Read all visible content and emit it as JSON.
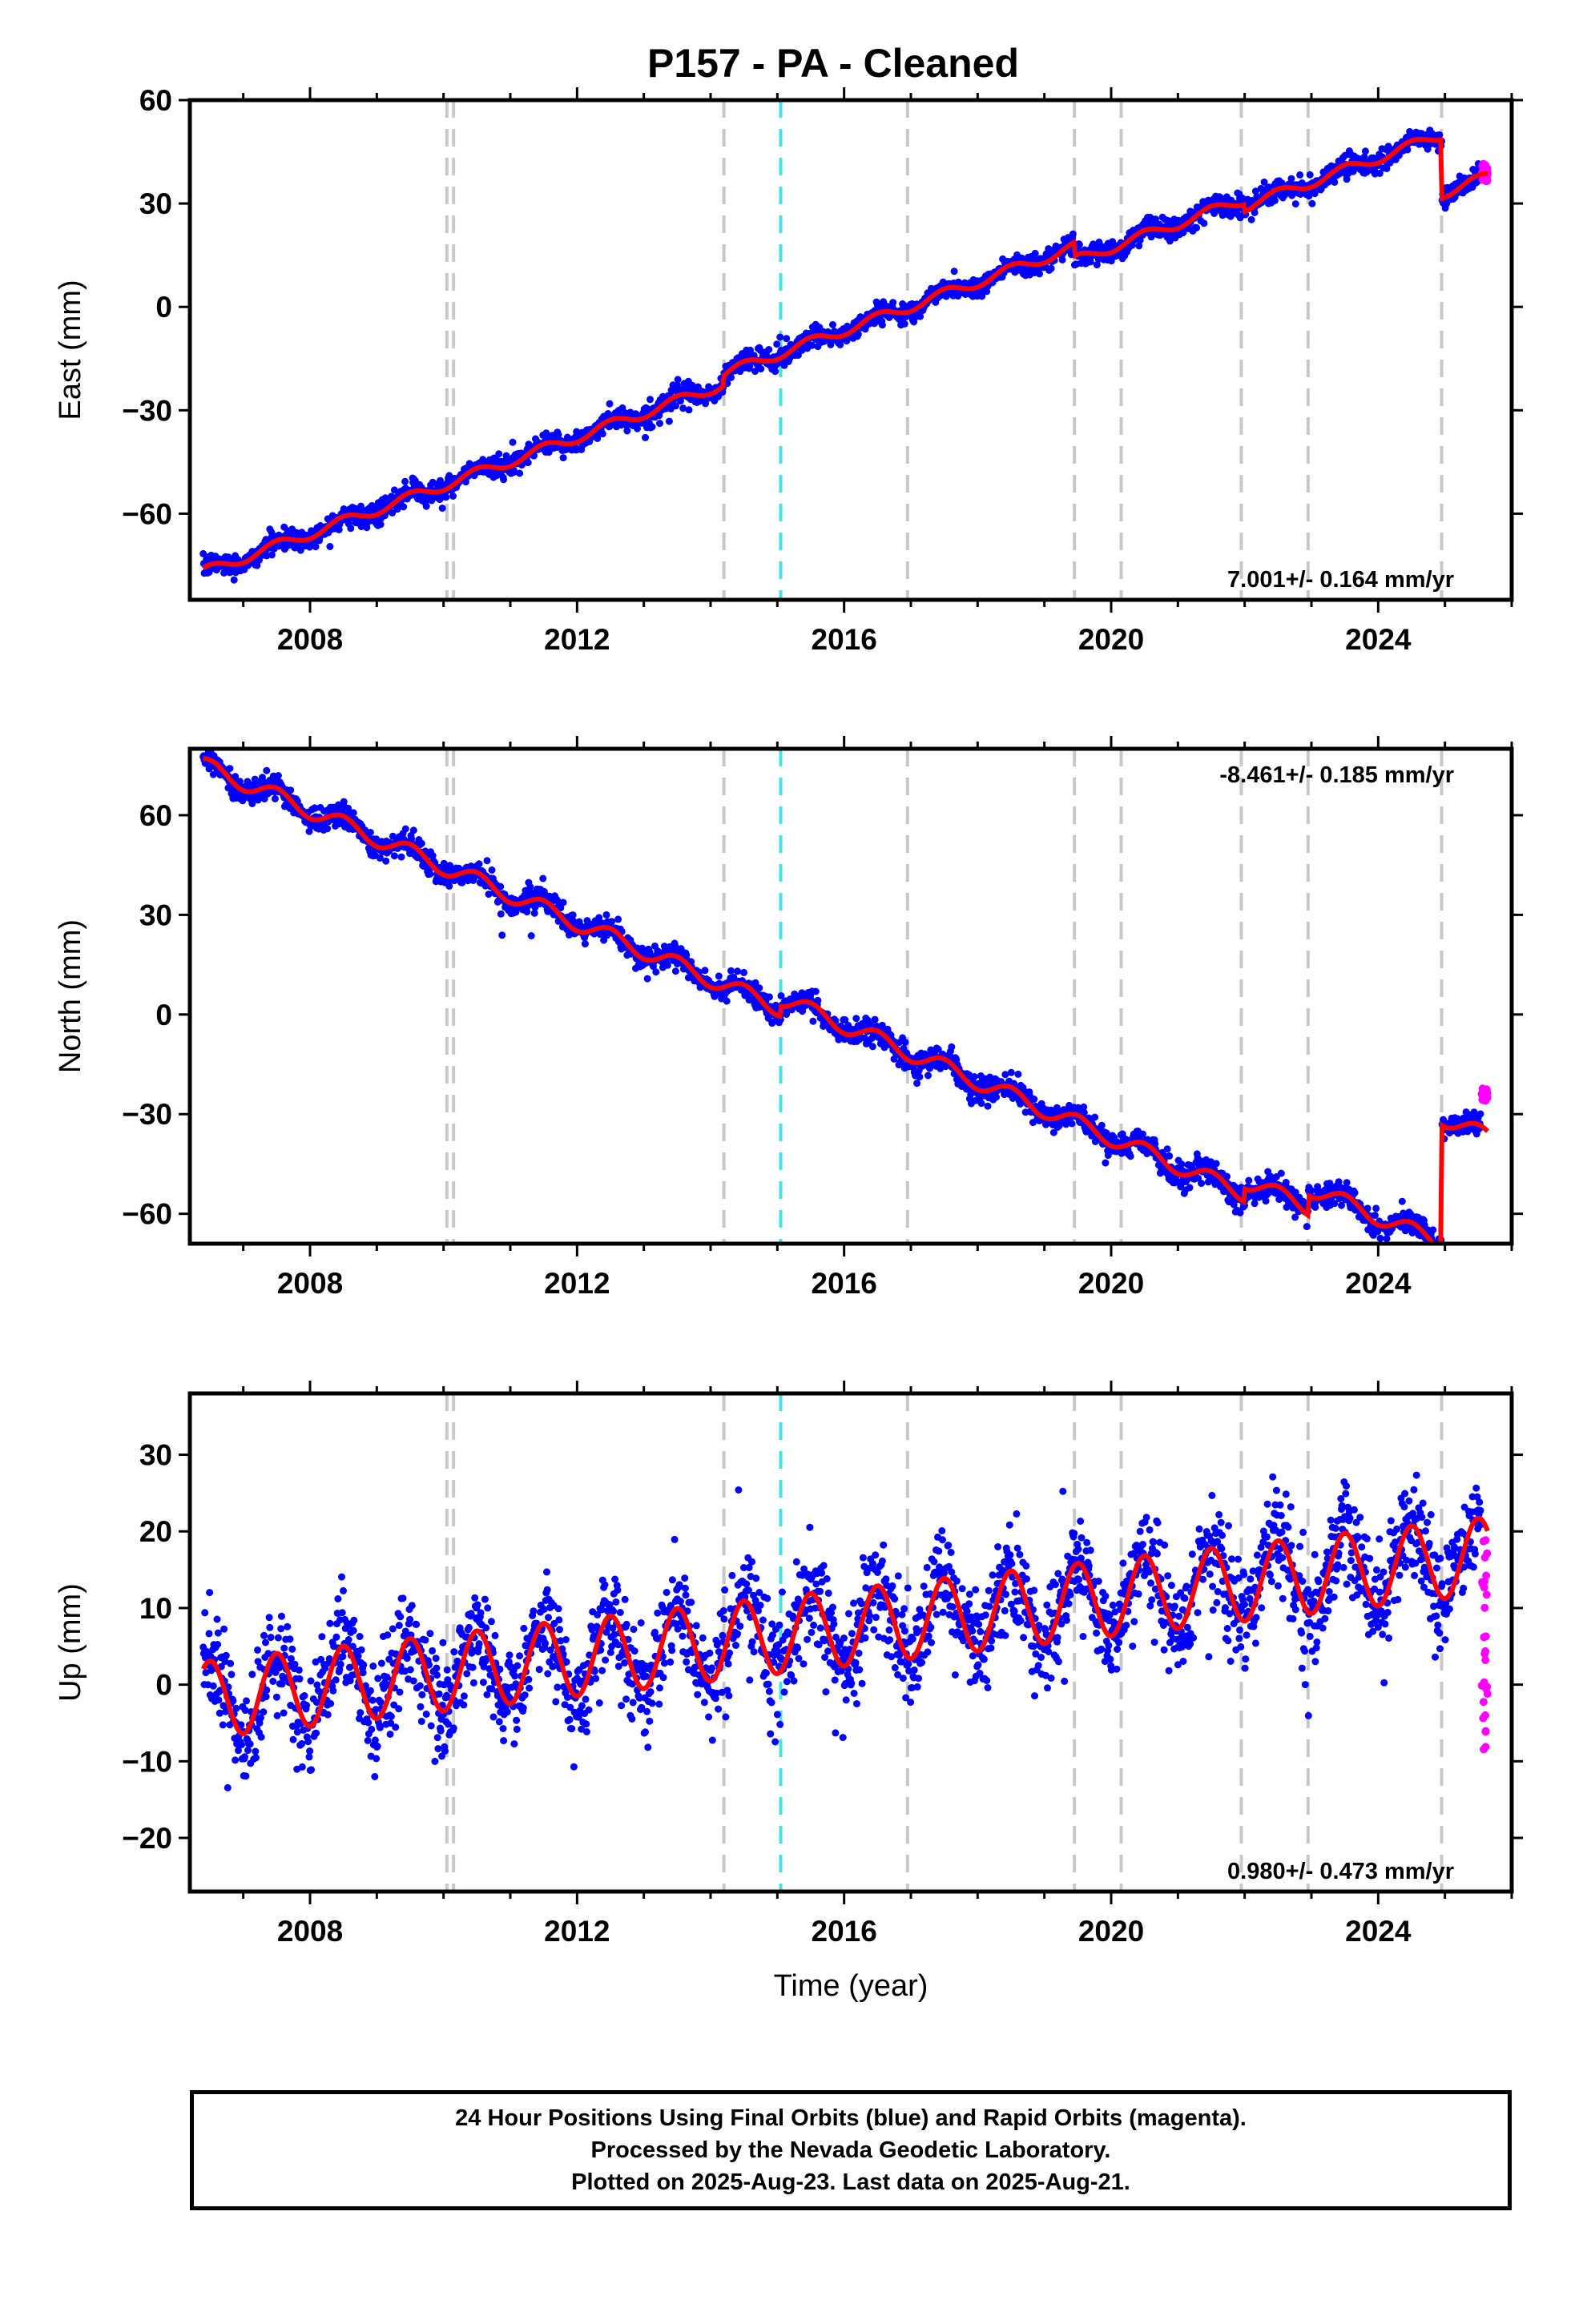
{
  "title": "P157  - PA - Cleaned",
  "footer": {
    "lines": [
      "24 Hour Positions Using Final Orbits (blue) and Rapid Orbits (magenta).",
      "Processed by the Nevada Geodetic Laboratory.",
      "Plotted on 2025-Aug-23. Last data on 2025-Aug-21."
    ]
  },
  "colors": {
    "final_orbits": "#0000ff",
    "rapid_orbits": "#ff00ff",
    "model_fit": "#ff0000",
    "equipment_change": "#c8c8c8",
    "earthquake_event": "#3ee6e6"
  },
  "chart_data": [
    {
      "type": "scatter",
      "component": "East",
      "ylabel": "East (mm)",
      "xlim": [
        2006.2,
        2026.0
      ],
      "ylim": [
        -85,
        60
      ],
      "yticks": [
        -60,
        -30,
        0,
        30,
        60
      ],
      "xticks": [
        2008,
        2012,
        2016,
        2020,
        2024
      ],
      "rate_text": "7.001+/- 0.164 mm/yr",
      "rate_mm_per_yr": 7.001,
      "rate_sigma": 0.164,
      "grid": false,
      "model": {
        "start_value": -77,
        "rate": 7.001,
        "seasonal_amplitude": 1.5,
        "noise": 1.5,
        "steps": [
          {
            "t": 2014.2,
            "dy": 3.0
          },
          {
            "t": 2019.45,
            "dy": -4.0
          },
          {
            "t": 2022.0,
            "dy": -2.0
          },
          {
            "t": 2024.95,
            "dy": -17.0
          }
        ]
      },
      "rapid": {
        "start": 2025.55,
        "end": 2025.64,
        "center": 39,
        "spread": 5
      }
    },
    {
      "type": "scatter",
      "component": "North",
      "ylabel": "North (mm)",
      "xlim": [
        2006.2,
        2026.0
      ],
      "ylim": [
        -69,
        80
      ],
      "yticks": [
        -60,
        -30,
        0,
        30,
        60
      ],
      "xticks": [
        2008,
        2012,
        2016,
        2020,
        2024
      ],
      "rate_text": "-8.461+/- 0.185 mm/yr",
      "rate_mm_per_yr": -8.461,
      "rate_sigma": 0.185,
      "grid": false,
      "model": {
        "start_value": 75,
        "rate": -8.461,
        "seasonal_amplitude": 2.5,
        "noise": 1.8,
        "steps": [
          {
            "t": 2015.05,
            "dy": 3.0
          },
          {
            "t": 2022.0,
            "dy": 4.0
          },
          {
            "t": 2022.95,
            "dy": 6.0
          },
          {
            "t": 2024.95,
            "dy": 38.0
          }
        ]
      },
      "rapid": {
        "start": 2025.55,
        "end": 2025.64,
        "center": -24,
        "spread": 4
      }
    },
    {
      "type": "scatter",
      "component": "Up",
      "ylabel": "Up (mm)",
      "xlabel": "Time (year)",
      "xlim": [
        2006.2,
        2026.0
      ],
      "ylim": [
        -27,
        38
      ],
      "yticks": [
        -20,
        -10,
        0,
        10,
        20,
        30
      ],
      "xticks": [
        2008,
        2012,
        2016,
        2020,
        2024
      ],
      "rate_text": "0.980+/- 0.473 mm/yr",
      "rate_mm_per_yr": 0.98,
      "rate_sigma": 0.473,
      "grid": false,
      "model": {
        "start_value": -2,
        "rate": 0.98,
        "seasonal_amplitude": 5.0,
        "noise": 3.3,
        "steps": []
      },
      "rapid": {
        "start": 2025.55,
        "end": 2025.64,
        "center": 5,
        "spread": 28
      }
    }
  ],
  "data_span": [
    2006.4,
    2025.64
  ],
  "events": {
    "equipment_changes": [
      2010.05,
      2010.15,
      2014.2,
      2016.95,
      2019.45,
      2020.15,
      2021.95,
      2022.95,
      2024.95
    ],
    "earthquakes": [
      2015.05
    ]
  }
}
